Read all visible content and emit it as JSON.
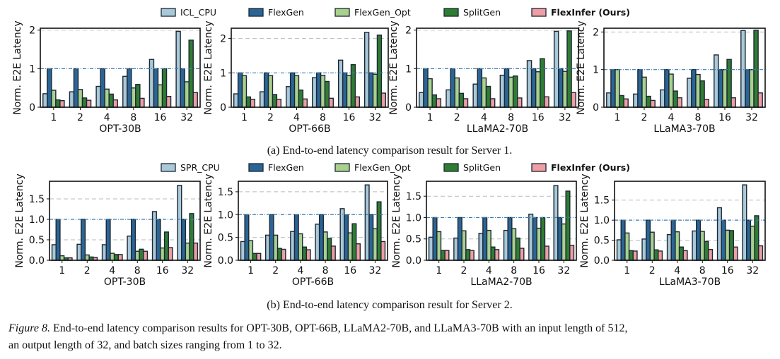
{
  "legends": [
    {
      "items": [
        "ICL_CPU",
        "FlexGen",
        "FlexGen_Opt",
        "SplitGen",
        "FlexInfer (Ours)"
      ]
    },
    {
      "items": [
        "SPR_CPU",
        "FlexGen",
        "FlexGen_Opt",
        "SplitGen",
        "FlexInfer (Ours)"
      ]
    }
  ],
  "colors": [
    "#a9c9d9",
    "#2b6596",
    "#a9d18e",
    "#2f7d33",
    "#ee9ea5"
  ],
  "captions": {
    "a": "(a)  End-to-end latency comparison result for Server 1.",
    "b": "(b)  End-to-end latency comparison result for Server 2.",
    "figure_label": "Figure 8.",
    "figure_line1": " End-to-end latency comparison results for OPT-30B, OPT-66B, LLaMA2-70B, and LLaMA3-70B with an input length of 512,",
    "figure_line2": "an output length of 32, and batch sizes ranging from 1 to 32."
  },
  "chart_data": [
    {
      "type": "bar",
      "xlabel": "OPT-30B",
      "ylabel": "Norm. E2E Latency",
      "categories": [
        "1",
        "2",
        "4",
        "8",
        "16",
        "32"
      ],
      "ylim": [
        0,
        2.05
      ],
      "yticks": [
        "0",
        "1",
        "2"
      ],
      "grid": "dashed-horizontal",
      "reference_line": 1,
      "series": [
        {
          "name": "ICL_CPU",
          "values": [
            0.35,
            0.4,
            0.54,
            0.8,
            1.24,
            1.97
          ]
        },
        {
          "name": "FlexGen",
          "values": [
            1,
            1,
            1,
            1,
            1,
            1
          ]
        },
        {
          "name": "FlexGen_Opt",
          "values": [
            0.44,
            0.46,
            0.47,
            0.5,
            0.58,
            0.66
          ]
        },
        {
          "name": "SplitGen",
          "values": [
            0.19,
            0.24,
            0.34,
            0.59,
            1.0,
            1.74
          ]
        },
        {
          "name": "FlexInfer (Ours)",
          "values": [
            0.17,
            0.18,
            0.19,
            0.23,
            0.28,
            0.38
          ]
        }
      ]
    },
    {
      "type": "bar",
      "xlabel": "OPT-66B",
      "ylabel": "Norm. E2E Latency",
      "categories": [
        "1",
        "2",
        "4",
        "8",
        "16",
        "32"
      ],
      "ylim": [
        0,
        2.3
      ],
      "yticks": [
        "0",
        "1",
        "2"
      ],
      "grid": "dashed-horizontal",
      "reference_line": 1,
      "series": [
        {
          "name": "ICL_CPU",
          "values": [
            0.39,
            0.45,
            0.6,
            0.86,
            1.37,
            2.18
          ]
        },
        {
          "name": "FlexGen",
          "values": [
            1,
            1,
            1,
            1,
            1,
            1
          ]
        },
        {
          "name": "FlexGen_Opt",
          "values": [
            0.92,
            0.92,
            0.92,
            0.93,
            0.93,
            0.96
          ]
        },
        {
          "name": "SplitGen",
          "values": [
            0.3,
            0.37,
            0.5,
            0.75,
            1.24,
            2.1
          ]
        },
        {
          "name": "FlexInfer (Ours)",
          "values": [
            0.23,
            0.23,
            0.24,
            0.26,
            0.3,
            0.41
          ]
        }
      ]
    },
    {
      "type": "bar",
      "xlabel": "LLaMA2-70B",
      "ylabel": "Norm. E2E Latency",
      "categories": [
        "1",
        "2",
        "4",
        "8",
        "16",
        "32"
      ],
      "ylim": [
        0,
        2.05
      ],
      "yticks": [
        "0",
        "1",
        "2"
      ],
      "grid": "dashed-horizontal",
      "reference_line": 1,
      "series": [
        {
          "name": "ICL_CPU",
          "values": [
            0.38,
            0.45,
            0.6,
            0.83,
            1.21,
            1.97
          ]
        },
        {
          "name": "FlexGen",
          "values": [
            1,
            1,
            1,
            1,
            1,
            1
          ]
        },
        {
          "name": "FlexGen_Opt",
          "values": [
            0.74,
            0.76,
            0.76,
            0.78,
            0.92,
            0.93
          ]
        },
        {
          "name": "SplitGen",
          "values": [
            0.32,
            0.36,
            0.54,
            0.81,
            1.26,
            1.98
          ]
        },
        {
          "name": "FlexInfer (Ours)",
          "values": [
            0.22,
            0.22,
            0.22,
            0.24,
            0.27,
            0.38
          ]
        }
      ]
    },
    {
      "type": "bar",
      "xlabel": "LLaMA3-70B",
      "ylabel": "Norm. E2E Latency",
      "categories": [
        "1",
        "2",
        "4",
        "8",
        "16",
        "32"
      ],
      "ylim": [
        0,
        2.1
      ],
      "yticks": [
        "0",
        "1",
        "2"
      ],
      "grid": "dashed-horizontal",
      "reference_line": 1,
      "series": [
        {
          "name": "ICL_CPU",
          "values": [
            0.38,
            0.35,
            0.46,
            0.77,
            1.39,
            2.04
          ]
        },
        {
          "name": "FlexGen",
          "values": [
            1,
            1,
            1,
            1,
            1,
            1
          ]
        },
        {
          "name": "FlexGen_Opt",
          "values": [
            1.0,
            0.8,
            0.88,
            0.87,
            1.0,
            1.0
          ]
        },
        {
          "name": "SplitGen",
          "values": [
            0.31,
            0.29,
            0.43,
            0.7,
            1.27,
            2.05
          ]
        },
        {
          "name": "FlexInfer (Ours)",
          "values": [
            0.22,
            0.18,
            0.25,
            0.21,
            0.25,
            0.38
          ]
        }
      ]
    },
    {
      "type": "bar",
      "xlabel": "OPT-30B",
      "ylabel": "Norm. E2E Latency",
      "categories": [
        "1",
        "2",
        "4",
        "8",
        "16",
        "32"
      ],
      "ylim": [
        0,
        1.93
      ],
      "yticks": [
        "0.0",
        "0.5",
        "1.0",
        "1.5"
      ],
      "grid": "dashed-horizontal",
      "reference_line": 1,
      "series": [
        {
          "name": "SPR_CPU",
          "values": [
            0.38,
            0.39,
            0.38,
            0.59,
            1.19,
            1.83
          ]
        },
        {
          "name": "FlexGen",
          "values": [
            1,
            1,
            1,
            1,
            1,
            1
          ]
        },
        {
          "name": "FlexGen_Opt",
          "values": [
            0.11,
            0.13,
            0.17,
            0.22,
            0.3,
            0.42
          ]
        },
        {
          "name": "SplitGen",
          "values": [
            0.06,
            0.08,
            0.14,
            0.27,
            0.69,
            1.14
          ]
        },
        {
          "name": "FlexInfer (Ours)",
          "values": [
            0.06,
            0.07,
            0.14,
            0.22,
            0.31,
            0.42
          ]
        }
      ]
    },
    {
      "type": "bar",
      "xlabel": "OPT-66B",
      "ylabel": "Norm. E2E Latency",
      "categories": [
        "1",
        "2",
        "4",
        "8",
        "16",
        "32"
      ],
      "ylim": [
        0,
        1.73
      ],
      "yticks": [
        "0.0",
        "0.5",
        "1.0",
        "1.5"
      ],
      "grid": "dashed-horizontal",
      "reference_line": 1,
      "series": [
        {
          "name": "SPR_CPU",
          "values": [
            0.41,
            0.55,
            0.63,
            0.79,
            1.13,
            1.65
          ]
        },
        {
          "name": "FlexGen",
          "values": [
            1,
            1,
            1,
            1,
            1,
            1
          ]
        },
        {
          "name": "FlexGen_Opt",
          "values": [
            0.43,
            0.55,
            0.58,
            0.62,
            0.6,
            0.69
          ]
        },
        {
          "name": "SplitGen",
          "values": [
            0.15,
            0.26,
            0.29,
            0.48,
            0.8,
            1.28
          ]
        },
        {
          "name": "FlexInfer (Ours)",
          "values": [
            0.15,
            0.24,
            0.23,
            0.31,
            0.36,
            0.41
          ]
        }
      ]
    },
    {
      "type": "bar",
      "xlabel": "LLaMA2-70B",
      "ylabel": "Norm. E2E Latency",
      "categories": [
        "1",
        "2",
        "4",
        "8",
        "16",
        "32"
      ],
      "ylim": [
        0,
        1.85
      ],
      "yticks": [
        "0.0",
        "0.5",
        "1.0",
        "1.5"
      ],
      "grid": "dashed-horizontal",
      "reference_line": 1,
      "series": [
        {
          "name": "SPR_CPU",
          "values": [
            0.54,
            0.52,
            0.63,
            0.7,
            1.08,
            1.75
          ]
        },
        {
          "name": "FlexGen",
          "values": [
            1,
            1,
            1,
            1,
            1,
            1
          ]
        },
        {
          "name": "FlexGen_Opt",
          "values": [
            0.67,
            0.69,
            0.7,
            0.74,
            0.75,
            0.85
          ]
        },
        {
          "name": "SplitGen",
          "values": [
            0.23,
            0.25,
            0.31,
            0.52,
            1.0,
            1.62
          ]
        },
        {
          "name": "FlexInfer (Ours)",
          "values": [
            0.23,
            0.23,
            0.25,
            0.28,
            0.33,
            0.35
          ]
        }
      ]
    },
    {
      "type": "bar",
      "xlabel": "LLaMA3-70B",
      "ylabel": "Norm. E2E Latency",
      "categories": [
        "1",
        "2",
        "4",
        "8",
        "16",
        "32"
      ],
      "ylim": [
        0,
        1.97
      ],
      "yticks": [
        "0.0",
        "0.5",
        "1.0",
        "1.5"
      ],
      "grid": "dashed-horizontal",
      "reference_line": 1,
      "series": [
        {
          "name": "SPR_CPU",
          "values": [
            0.51,
            0.53,
            0.64,
            0.73,
            1.31,
            1.88
          ]
        },
        {
          "name": "FlexGen",
          "values": [
            1,
            1,
            1,
            1,
            1,
            1
          ]
        },
        {
          "name": "FlexGen_Opt",
          "values": [
            0.68,
            0.7,
            0.71,
            0.72,
            0.75,
            0.85
          ]
        },
        {
          "name": "SplitGen",
          "values": [
            0.24,
            0.26,
            0.33,
            0.47,
            0.74,
            1.11
          ]
        },
        {
          "name": "FlexInfer (Ours)",
          "values": [
            0.23,
            0.23,
            0.24,
            0.27,
            0.33,
            0.36
          ]
        }
      ]
    }
  ]
}
